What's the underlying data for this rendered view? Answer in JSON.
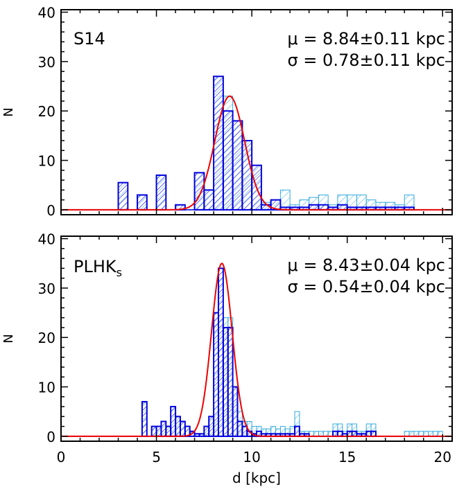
{
  "chart_data": [
    {
      "type": "bar",
      "panel_label": "S14",
      "stat_mu": "μ = 8.84±0.11 kpc",
      "stat_sigma": "σ = 0.78±0.11 kpc",
      "ylabel": "N",
      "xlabel": "",
      "xlim": [
        0,
        20.5
      ],
      "ylim": [
        -1,
        40.5
      ],
      "bin_width": 0.5,
      "x_ticks": [
        "0",
        "5",
        "10",
        "15",
        "20"
      ],
      "y_ticks": [
        "0",
        "10",
        "20",
        "30",
        "40"
      ],
      "series": [
        {
          "role": "all",
          "color": "#33aadd",
          "bins": [
            [
              3.25,
              5.5
            ],
            [
              4.25,
              3
            ],
            [
              5.25,
              7
            ],
            [
              6.25,
              1
            ],
            [
              7.25,
              7.5
            ],
            [
              7.75,
              4
            ],
            [
              8.25,
              27
            ],
            [
              8.75,
              23
            ],
            [
              9.25,
              18
            ],
            [
              9.75,
              14
            ],
            [
              10.25,
              9
            ],
            [
              10.75,
              1.5
            ],
            [
              11.25,
              2
            ],
            [
              11.75,
              4
            ],
            [
              12.25,
              1
            ],
            [
              12.75,
              2
            ],
            [
              13.25,
              2.5
            ],
            [
              13.75,
              3
            ],
            [
              14.25,
              1
            ],
            [
              14.75,
              3
            ],
            [
              15.25,
              3
            ],
            [
              15.75,
              3
            ],
            [
              16.25,
              2
            ],
            [
              16.75,
              1.5
            ],
            [
              17.25,
              1.5
            ],
            [
              17.75,
              1
            ],
            [
              18.25,
              3
            ]
          ]
        },
        {
          "role": "subset",
          "color": "#0000dd",
          "bins": [
            [
              3.25,
              5.5
            ],
            [
              4.25,
              3
            ],
            [
              5.25,
              7
            ],
            [
              6.25,
              1
            ],
            [
              7.25,
              7.5
            ],
            [
              7.75,
              4
            ],
            [
              8.25,
              27
            ],
            [
              8.75,
              20
            ],
            [
              9.25,
              18
            ],
            [
              9.75,
              14
            ],
            [
              10.25,
              9
            ],
            [
              10.75,
              1
            ],
            [
              11.25,
              2
            ],
            [
              11.75,
              0.5
            ],
            [
              12.25,
              0.5
            ],
            [
              12.75,
              0.5
            ],
            [
              13.25,
              1
            ],
            [
              13.75,
              1
            ],
            [
              14.25,
              0.5
            ],
            [
              14.75,
              1
            ],
            [
              15.25,
              0.5
            ],
            [
              15.75,
              0.5
            ],
            [
              16.25,
              0.5
            ],
            [
              16.75,
              0.5
            ],
            [
              17.25,
              0.5
            ],
            [
              17.75,
              0.5
            ],
            [
              18.25,
              0.5
            ]
          ]
        }
      ],
      "fit": {
        "type": "gaussian",
        "mu": 8.84,
        "sigma": 0.78,
        "peak": 23,
        "color": "#ee0000"
      }
    },
    {
      "type": "bar",
      "panel_label_main": "PLHK",
      "panel_label_sub": "s",
      "stat_mu": "μ = 8.43±0.04 kpc",
      "stat_sigma": "σ = 0.54±0.04 kpc",
      "ylabel": "N",
      "xlabel": "d [kpc]",
      "xlim": [
        0,
        20.5
      ],
      "ylim": [
        -1,
        40.5
      ],
      "bin_width": 0.25,
      "x_ticks": [
        "0",
        "5",
        "10",
        "15",
        "20"
      ],
      "y_ticks": [
        "0",
        "10",
        "20",
        "30",
        "40"
      ],
      "series": [
        {
          "role": "all",
          "color": "#33aadd",
          "bins": [
            [
              4.375,
              7
            ],
            [
              4.875,
              2
            ],
            [
              5.125,
              2
            ],
            [
              5.375,
              3
            ],
            [
              5.625,
              2
            ],
            [
              5.875,
              6
            ],
            [
              6.125,
              4
            ],
            [
              6.375,
              3
            ],
            [
              6.625,
              2
            ],
            [
              6.875,
              1
            ],
            [
              7.125,
              0.5
            ],
            [
              7.375,
              0.5
            ],
            [
              7.625,
              2
            ],
            [
              7.875,
              4
            ],
            [
              8.125,
              25
            ],
            [
              8.375,
              34
            ],
            [
              8.625,
              24
            ],
            [
              8.875,
              24
            ],
            [
              9.125,
              10
            ],
            [
              9.375,
              5
            ],
            [
              9.625,
              3
            ],
            [
              9.875,
              3
            ],
            [
              10.125,
              2
            ],
            [
              10.375,
              2
            ],
            [
              10.625,
              1.5
            ],
            [
              10.875,
              1.5
            ],
            [
              11.125,
              2
            ],
            [
              11.375,
              1.5
            ],
            [
              11.625,
              2
            ],
            [
              11.875,
              1.5
            ],
            [
              12.125,
              2
            ],
            [
              12.375,
              5
            ],
            [
              12.625,
              1
            ],
            [
              12.875,
              1
            ],
            [
              13.125,
              1
            ],
            [
              13.375,
              1
            ],
            [
              13.625,
              1
            ],
            [
              13.875,
              1
            ],
            [
              14.125,
              1
            ],
            [
              14.375,
              2.5
            ],
            [
              14.625,
              2.5
            ],
            [
              14.875,
              1
            ],
            [
              15.125,
              2.5
            ],
            [
              15.375,
              2.5
            ],
            [
              15.625,
              1
            ],
            [
              15.875,
              1
            ],
            [
              16.125,
              2.5
            ],
            [
              16.375,
              2.5
            ],
            [
              18.125,
              1
            ],
            [
              18.375,
              1
            ],
            [
              18.625,
              1
            ],
            [
              18.875,
              1
            ],
            [
              19.125,
              1
            ],
            [
              19.375,
              1
            ],
            [
              19.625,
              1
            ],
            [
              19.875,
              1
            ]
          ]
        },
        {
          "role": "subset",
          "color": "#0000dd",
          "bins": [
            [
              4.375,
              7
            ],
            [
              4.875,
              2
            ],
            [
              5.125,
              2
            ],
            [
              5.375,
              3
            ],
            [
              5.625,
              2
            ],
            [
              5.875,
              6
            ],
            [
              6.125,
              4
            ],
            [
              6.375,
              3
            ],
            [
              6.625,
              2
            ],
            [
              6.875,
              1
            ],
            [
              7.125,
              0.5
            ],
            [
              7.375,
              0.5
            ],
            [
              7.625,
              2
            ],
            [
              7.875,
              4
            ],
            [
              8.125,
              25
            ],
            [
              8.375,
              34
            ],
            [
              8.625,
              22
            ],
            [
              8.875,
              22
            ],
            [
              9.125,
              10
            ],
            [
              9.375,
              3
            ],
            [
              9.625,
              2
            ],
            [
              9.875,
              1
            ],
            [
              10.125,
              0.5
            ],
            [
              10.375,
              1
            ],
            [
              10.625,
              0.5
            ],
            [
              10.875,
              0.5
            ],
            [
              11.125,
              0.5
            ],
            [
              11.375,
              0.5
            ],
            [
              11.625,
              0.5
            ],
            [
              11.875,
              0.5
            ],
            [
              12.125,
              0.5
            ],
            [
              12.375,
              2
            ],
            [
              12.625,
              0.5
            ],
            [
              12.875,
              0.5
            ],
            [
              14.375,
              1
            ],
            [
              14.625,
              1
            ],
            [
              14.875,
              0.5
            ],
            [
              15.125,
              1
            ],
            [
              15.375,
              1
            ],
            [
              15.625,
              0.5
            ],
            [
              15.875,
              0.5
            ],
            [
              16.125,
              1
            ],
            [
              16.375,
              1
            ]
          ]
        }
      ],
      "fit": {
        "type": "gaussian",
        "mu": 8.43,
        "sigma": 0.54,
        "peak": 35,
        "color": "#ee0000"
      }
    }
  ]
}
